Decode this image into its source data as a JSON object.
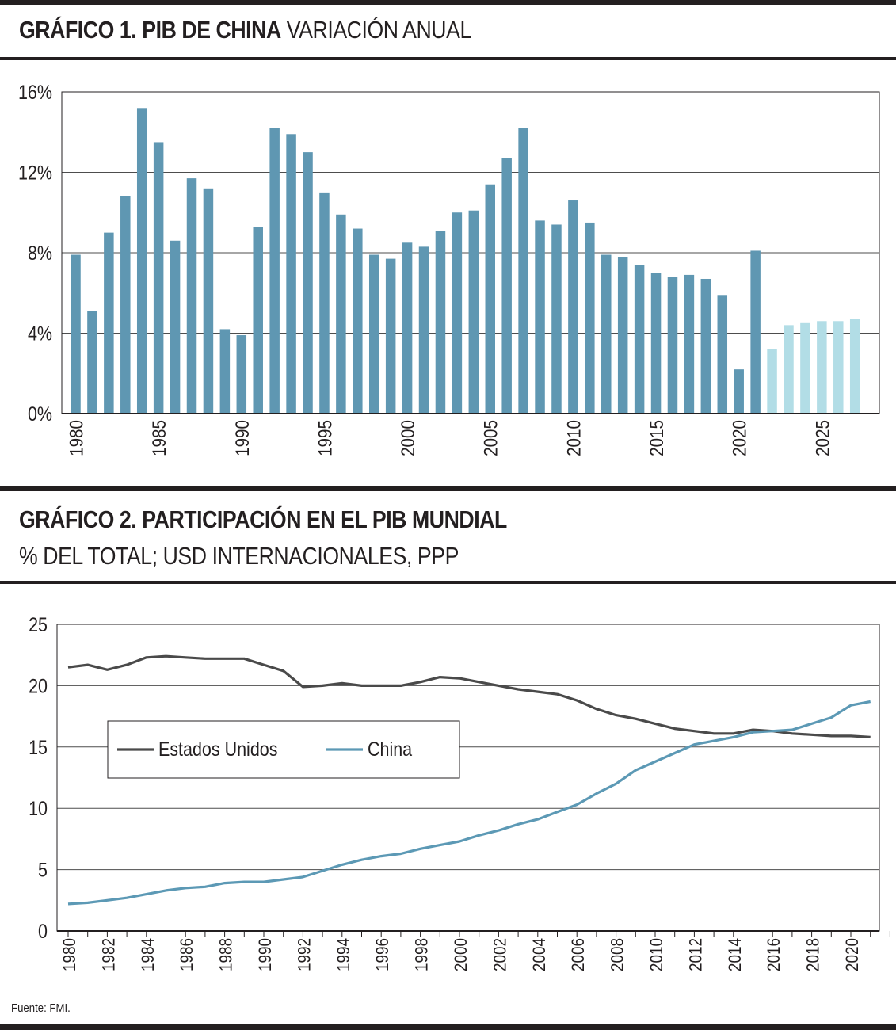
{
  "chart1": {
    "title_bold": "GRÁFICO 1. PIB DE CHINA",
    "title_light": "VARIACIÓN ANUAL"
  },
  "chart2": {
    "title": "GRÁFICO 2. PARTICIPACIÓN EN EL PIB MUNDIAL",
    "subtitle": "% DEL TOTAL; USD INTERNACIONALES, PPP"
  },
  "source": "Fuente: FMI.",
  "colors": {
    "bar": "#5f97b2",
    "bar_forecast": "#b2dde6",
    "us_line": "#4a4a4a",
    "china_line": "#5c99b5",
    "grid": "#4d4d4d"
  },
  "chart_data": [
    {
      "type": "bar",
      "title": "GRÁFICO 1. PIB DE CHINA VARIACIÓN ANUAL",
      "xlabel": "",
      "ylabel": "",
      "ylim": [
        0,
        16
      ],
      "yticks": [
        0,
        4,
        8,
        12,
        16
      ],
      "ytick_labels": [
        "0%",
        "4%",
        "8%",
        "12%",
        "16%"
      ],
      "xtick_labels": [
        "1980",
        "1985",
        "1990",
        "1995",
        "2000",
        "2005",
        "2010",
        "2015",
        "2020",
        "2025"
      ],
      "grid": true,
      "categories": [
        1980,
        1981,
        1982,
        1983,
        1984,
        1985,
        1986,
        1987,
        1988,
        1989,
        1990,
        1991,
        1992,
        1993,
        1994,
        1995,
        1996,
        1997,
        1998,
        1999,
        2000,
        2001,
        2002,
        2003,
        2004,
        2005,
        2006,
        2007,
        2008,
        2009,
        2010,
        2011,
        2012,
        2013,
        2014,
        2015,
        2016,
        2017,
        2018,
        2019,
        2020,
        2021,
        2022,
        2023,
        2024,
        2025,
        2026,
        2027
      ],
      "values": [
        7.9,
        5.1,
        9.0,
        10.8,
        15.2,
        13.5,
        8.6,
        11.7,
        11.2,
        4.2,
        3.9,
        9.3,
        14.2,
        13.9,
        13.0,
        11.0,
        9.9,
        9.2,
        7.9,
        7.7,
        8.5,
        8.3,
        9.1,
        10.0,
        10.1,
        11.4,
        12.7,
        14.2,
        9.6,
        9.4,
        10.6,
        9.5,
        7.9,
        7.8,
        7.4,
        7.0,
        6.8,
        6.9,
        6.7,
        5.9,
        2.2,
        8.1,
        3.2,
        4.4,
        4.5,
        4.6,
        4.6,
        4.7
      ],
      "forecast_from": 2022
    },
    {
      "type": "line",
      "title": "GRÁFICO 2. PARTICIPACIÓN EN EL PIB MUNDIAL",
      "subtitle": "% DEL TOTAL; USD INTERNACIONALES, PPP",
      "xlabel": "",
      "ylabel": "",
      "ylim": [
        0,
        25
      ],
      "yticks": [
        0,
        5,
        10,
        15,
        20,
        25
      ],
      "xtick_labels": [
        "1980",
        "1982",
        "1984",
        "1986",
        "1988",
        "1990",
        "1992",
        "1994",
        "1996",
        "1998",
        "2000",
        "2002",
        "2004",
        "2006",
        "2008",
        "2010",
        "2012",
        "2014",
        "2016",
        "2018",
        "2020"
      ],
      "grid": true,
      "legend_position": "middle-left",
      "x": [
        1980,
        1981,
        1982,
        1983,
        1984,
        1985,
        1986,
        1987,
        1988,
        1989,
        1990,
        1991,
        1992,
        1993,
        1994,
        1995,
        1996,
        1997,
        1998,
        1999,
        2000,
        2001,
        2002,
        2003,
        2004,
        2005,
        2006,
        2007,
        2008,
        2009,
        2010,
        2011,
        2012,
        2013,
        2014,
        2015,
        2016,
        2017,
        2018,
        2019,
        2020,
        2021
      ],
      "series": [
        {
          "name": "Estados Unidos",
          "values": [
            21.5,
            21.7,
            21.3,
            21.7,
            22.3,
            22.4,
            22.3,
            22.2,
            22.2,
            22.2,
            21.7,
            21.2,
            19.9,
            20.0,
            20.2,
            20.0,
            20.0,
            20.0,
            20.3,
            20.7,
            20.6,
            20.3,
            20.0,
            19.7,
            19.5,
            19.3,
            18.8,
            18.1,
            17.6,
            17.3,
            16.9,
            16.5,
            16.3,
            16.1,
            16.1,
            16.4,
            16.3,
            16.1,
            16.0,
            15.9,
            15.9,
            15.8
          ]
        },
        {
          "name": "China",
          "values": [
            2.2,
            2.3,
            2.5,
            2.7,
            3.0,
            3.3,
            3.5,
            3.6,
            3.9,
            4.0,
            4.0,
            4.2,
            4.4,
            4.9,
            5.4,
            5.8,
            6.1,
            6.3,
            6.7,
            7.0,
            7.3,
            7.8,
            8.2,
            8.7,
            9.1,
            9.7,
            10.3,
            11.2,
            12.0,
            13.1,
            13.8,
            14.5,
            15.2,
            15.5,
            15.8,
            16.2,
            16.3,
            16.4,
            16.9,
            17.4,
            18.4,
            18.7
          ]
        }
      ]
    }
  ]
}
